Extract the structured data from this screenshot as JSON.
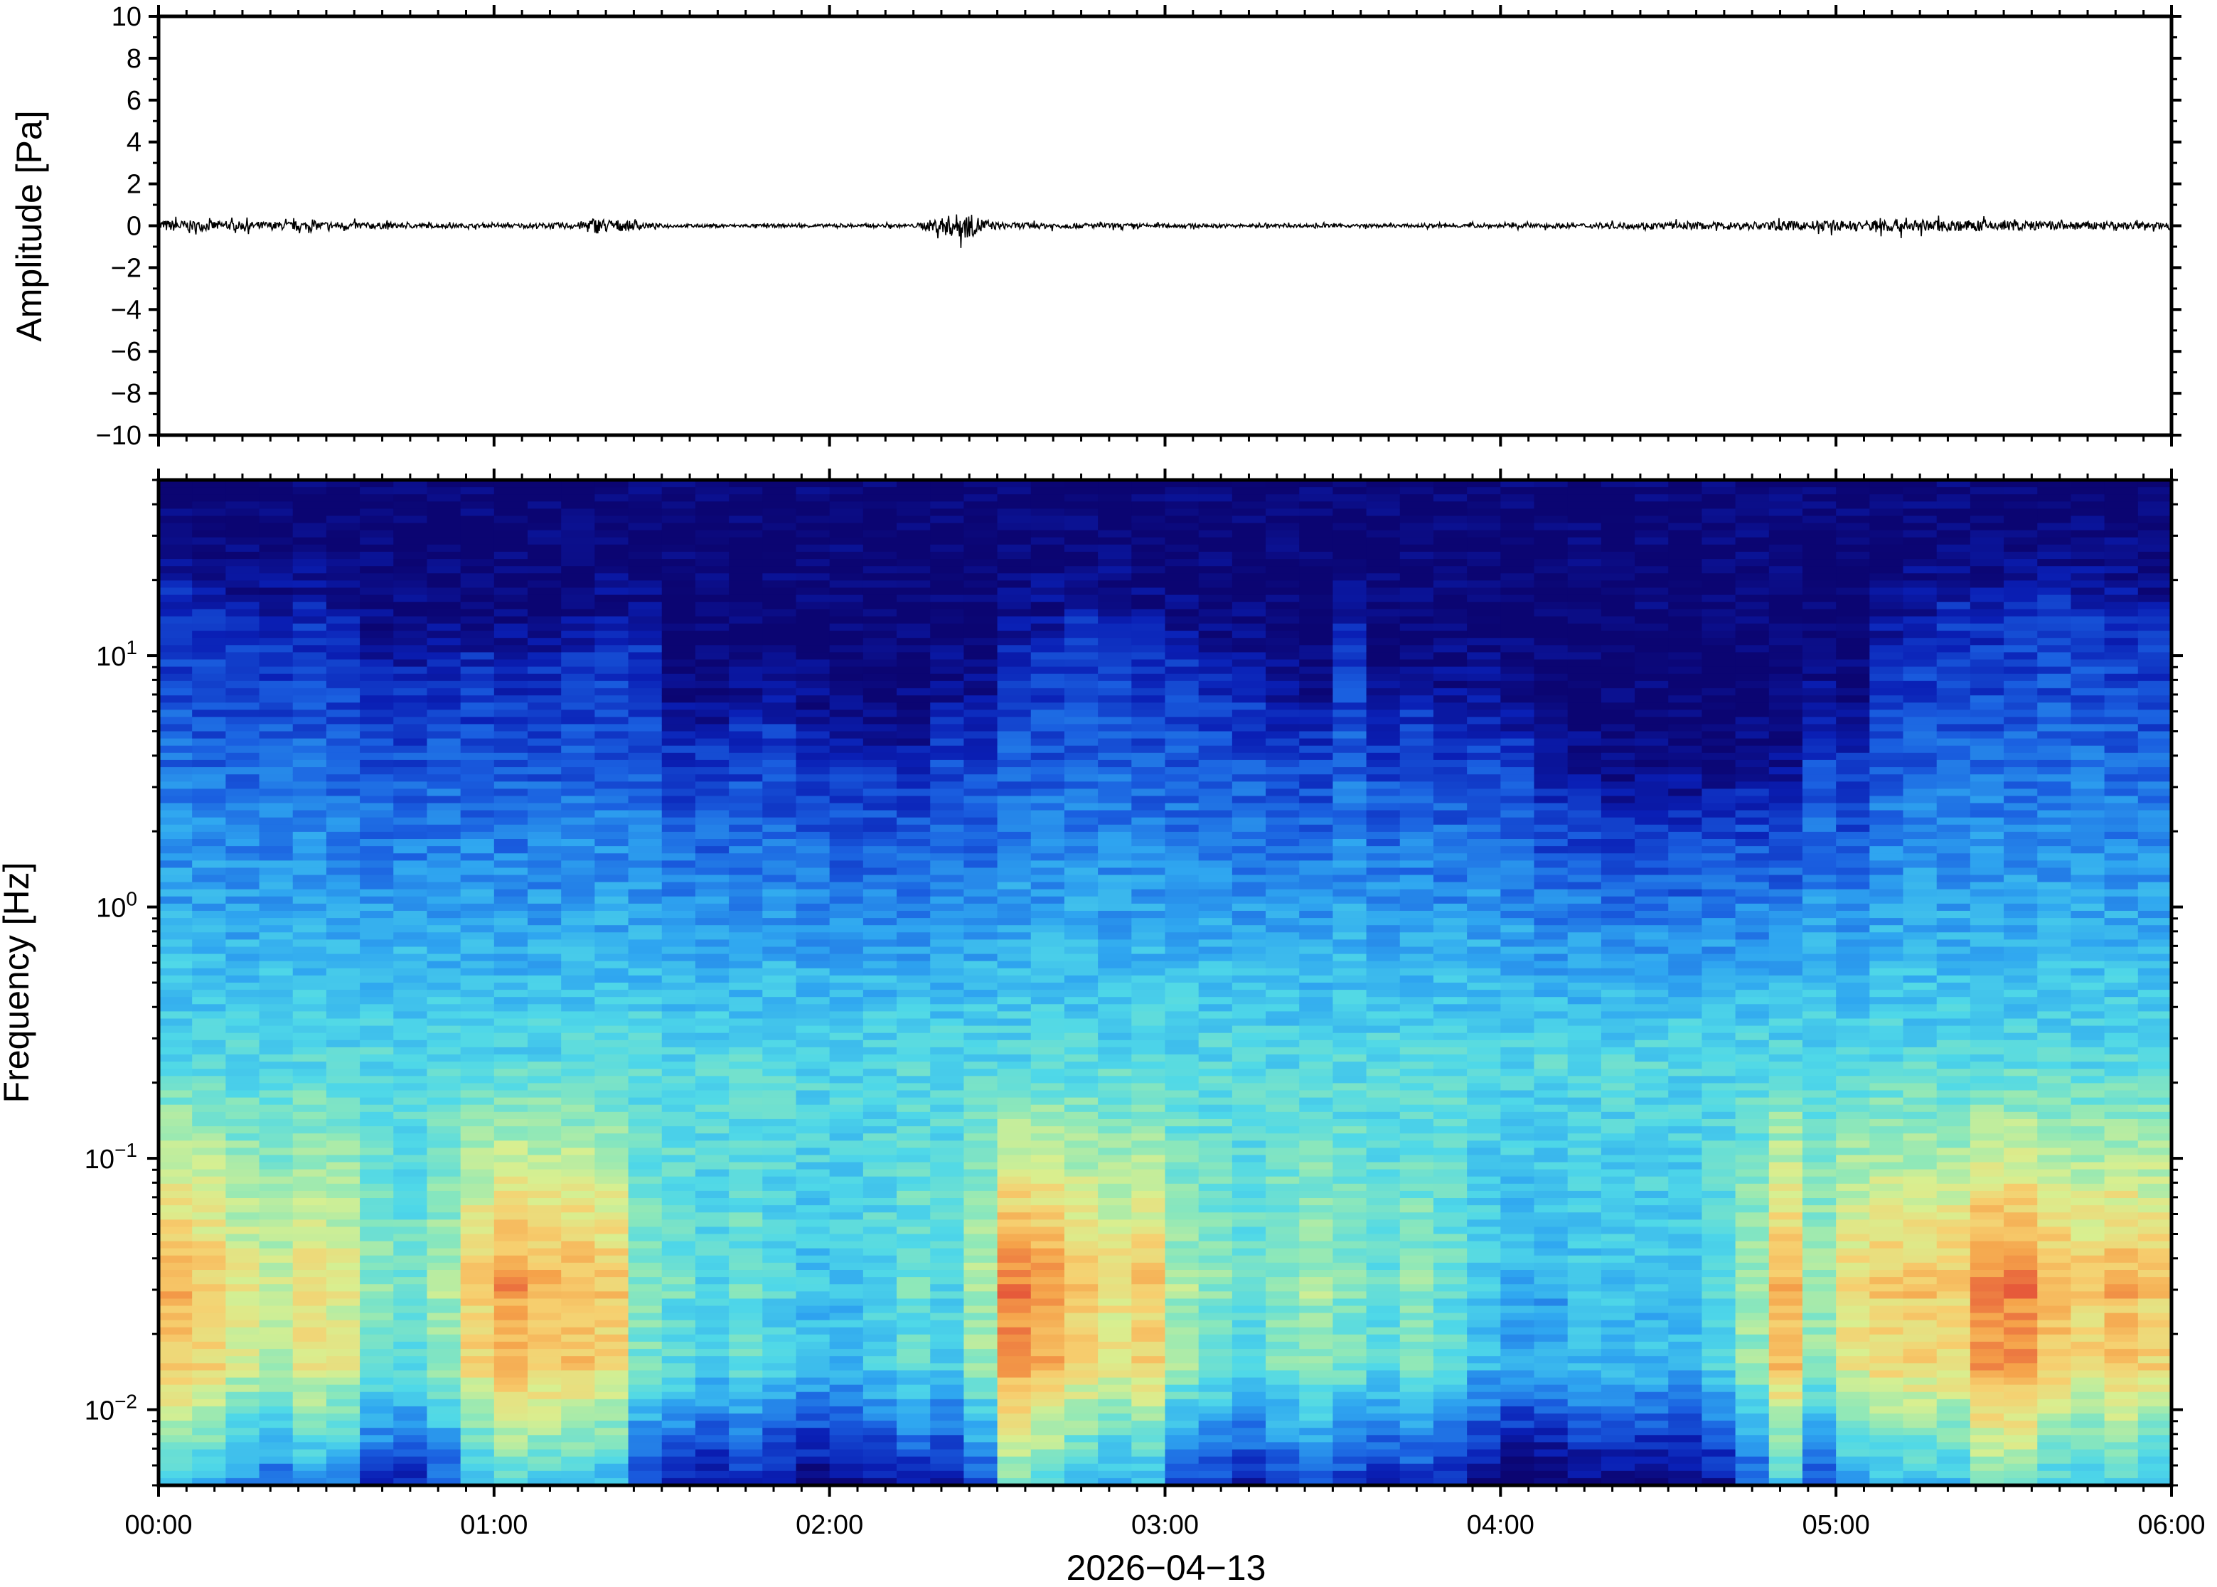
{
  "chart_data": [
    {
      "type": "line",
      "panel": "waveform",
      "ylabel": "Amplitude [Pa]",
      "ylim": [
        -10,
        10
      ],
      "yticks": [
        "10",
        "8",
        "6",
        "4",
        "2",
        "0",
        "−2",
        "−4",
        "−6",
        "−8",
        "−10"
      ],
      "ytick_values": [
        10,
        8,
        6,
        4,
        2,
        0,
        -2,
        -4,
        -6,
        -8,
        -10
      ],
      "grid": false,
      "series": [
        {
          "color": "#000000",
          "x_hours": [
            0.0,
            0.25,
            0.5,
            0.75,
            1.0,
            1.25,
            1.29,
            1.5,
            1.75,
            2.0,
            2.25,
            2.35,
            2.4,
            2.5,
            2.75,
            3.0,
            3.25,
            3.5,
            3.75,
            4.0,
            4.25,
            4.5,
            4.75,
            5.0,
            5.15,
            5.25,
            5.5,
            5.75,
            6.0
          ],
          "envelope_pa": [
            0.35,
            0.25,
            0.25,
            0.15,
            0.1,
            0.2,
            0.5,
            0.1,
            0.1,
            0.1,
            0.1,
            0.6,
            0.8,
            0.2,
            0.15,
            0.12,
            0.1,
            0.1,
            0.1,
            0.12,
            0.15,
            0.2,
            0.25,
            0.3,
            0.4,
            0.35,
            0.3,
            0.25,
            0.2
          ]
        }
      ]
    },
    {
      "type": "heatmap",
      "panel": "spectrogram",
      "ylabel": "Frequency [Hz]",
      "xlabel": "2026−04−13",
      "y_scale": "log",
      "ylim_hz": [
        0.005,
        50
      ],
      "yticks": [
        {
          "base": "10",
          "exp": "1",
          "value": 10
        },
        {
          "base": "10",
          "exp": "0",
          "value": 1
        },
        {
          "base": "10",
          "exp": "−1",
          "value": 0.1
        },
        {
          "base": "10",
          "exp": "−2",
          "value": 0.01
        }
      ],
      "xticks": [
        "00:00",
        "01:00",
        "02:00",
        "03:00",
        "04:00",
        "05:00",
        "06:00"
      ],
      "xlim_hours": [
        0,
        6
      ],
      "colormap": "jet",
      "colormap_stops": [
        "#0b0572",
        "#0a1fb5",
        "#1a5fe0",
        "#2fa6f0",
        "#4fd8e8",
        "#8fe8b8",
        "#d8ef90",
        "#f6d070",
        "#f5a24a",
        "#e65a3a"
      ],
      "columns": 60,
      "high_freq_cutoff_hz_per_column": [
        20,
        16,
        14,
        14,
        16,
        14,
        9,
        9,
        10,
        10,
        9,
        9,
        11,
        12,
        12,
        5,
        5,
        6,
        6,
        5,
        4,
        4,
        4,
        6,
        6,
        11,
        12,
        14,
        13,
        12,
        10,
        9,
        8,
        6,
        6,
        13,
        6,
        7,
        6,
        6,
        5,
        3,
        3,
        2.5,
        2.5,
        2.5,
        3,
        3,
        3,
        6,
        4,
        12,
        14,
        16,
        16,
        18,
        20,
        18,
        16,
        14
      ],
      "low_freq_intensity_per_column": [
        0.85,
        0.8,
        0.7,
        0.65,
        0.75,
        0.7,
        0.55,
        0.5,
        0.6,
        0.8,
        0.9,
        0.85,
        0.85,
        0.8,
        0.55,
        0.5,
        0.45,
        0.5,
        0.45,
        0.4,
        0.4,
        0.45,
        0.5,
        0.45,
        0.6,
        0.95,
        0.9,
        0.8,
        0.75,
        0.8,
        0.6,
        0.55,
        0.5,
        0.55,
        0.6,
        0.55,
        0.5,
        0.55,
        0.5,
        0.4,
        0.35,
        0.35,
        0.4,
        0.4,
        0.4,
        0.4,
        0.45,
        0.6,
        0.85,
        0.6,
        0.75,
        0.8,
        0.8,
        0.8,
        0.95,
        0.95,
        0.85,
        0.8,
        0.85,
        0.8
      ]
    }
  ]
}
